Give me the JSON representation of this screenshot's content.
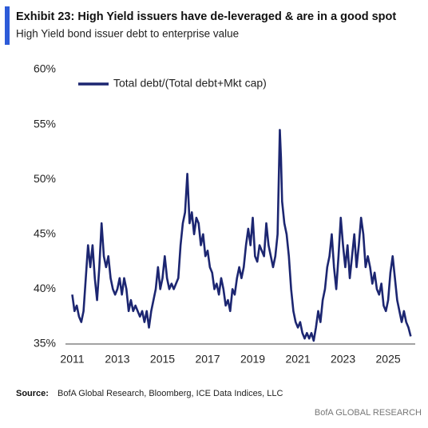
{
  "chart_data": {
    "type": "line",
    "title": "Exhibit 23: High Yield issuers have de-leveraged & are in a good spot",
    "subtitle": "High Yield bond issuer debt to enterprise value",
    "source_label": "Source:",
    "source": "BofA Global Research, Bloomberg, ICE Data Indices, LLC",
    "footer": "BofA GLOBAL RESEARCH",
    "legend": "top-left",
    "grid": false,
    "xlim": [
      2010.7,
      2026.2
    ],
    "xticks": [
      2011,
      2013,
      2015,
      2017,
      2019,
      2021,
      2023,
      2025
    ],
    "ylim": [
      35,
      60
    ],
    "yticks": [
      {
        "value": 35,
        "label": "35%"
      },
      {
        "value": 40,
        "label": "40%"
      },
      {
        "value": 45,
        "label": "45%"
      },
      {
        "value": 50,
        "label": "50%"
      },
      {
        "value": 55,
        "label": "55%"
      },
      {
        "value": 60,
        "label": "60%"
      }
    ],
    "x": [
      2011.0,
      2011.1,
      2011.2,
      2011.3,
      2011.4,
      2011.5,
      2011.6,
      2011.7,
      2011.8,
      2011.9,
      2012.0,
      2012.1,
      2012.2,
      2012.3,
      2012.4,
      2012.5,
      2012.6,
      2012.7,
      2012.8,
      2012.9,
      2013.0,
      2013.1,
      2013.2,
      2013.3,
      2013.4,
      2013.5,
      2013.6,
      2013.7,
      2013.8,
      2013.9,
      2014.0,
      2014.1,
      2014.2,
      2014.3,
      2014.4,
      2014.5,
      2014.6,
      2014.7,
      2014.8,
      2014.9,
      2015.0,
      2015.1,
      2015.2,
      2015.3,
      2015.4,
      2015.5,
      2015.6,
      2015.7,
      2015.8,
      2015.9,
      2016.0,
      2016.1,
      2016.2,
      2016.3,
      2016.4,
      2016.5,
      2016.6,
      2016.7,
      2016.8,
      2016.9,
      2017.0,
      2017.1,
      2017.2,
      2017.3,
      2017.4,
      2017.5,
      2017.6,
      2017.7,
      2017.8,
      2017.9,
      2018.0,
      2018.1,
      2018.2,
      2018.3,
      2018.4,
      2018.5,
      2018.6,
      2018.7,
      2018.8,
      2018.9,
      2019.0,
      2019.1,
      2019.2,
      2019.3,
      2019.4,
      2019.5,
      2019.6,
      2019.7,
      2019.8,
      2019.9,
      2020.0,
      2020.1,
      2020.2,
      2020.25,
      2020.3,
      2020.4,
      2020.5,
      2020.6,
      2020.7,
      2020.8,
      2020.9,
      2021.0,
      2021.1,
      2021.2,
      2021.3,
      2021.4,
      2021.5,
      2021.6,
      2021.7,
      2021.8,
      2021.9,
      2022.0,
      2022.1,
      2022.2,
      2022.3,
      2022.4,
      2022.5,
      2022.6,
      2022.7,
      2022.8,
      2022.9,
      2023.0,
      2023.1,
      2023.2,
      2023.3,
      2023.4,
      2023.5,
      2023.6,
      2023.7,
      2023.8,
      2023.9,
      2024.0,
      2024.1,
      2024.2,
      2024.3,
      2024.4,
      2024.5,
      2024.6,
      2024.7,
      2024.8,
      2024.9,
      2025.0,
      2025.1,
      2025.2,
      2025.3,
      2025.4,
      2025.5,
      2025.6,
      2025.7,
      2025.8,
      2025.9,
      2026.0
    ],
    "series": [
      {
        "name": "Total debt/(Total debt+Mkt cap)",
        "color": "#1c2671",
        "values": [
          39.5,
          38,
          38.5,
          37.5,
          37,
          38,
          41,
          44,
          42,
          44,
          41,
          39,
          42,
          46,
          43,
          42,
          43,
          41,
          40,
          39.5,
          40,
          41,
          39.5,
          41,
          40,
          38,
          39,
          38,
          38.5,
          38,
          37.5,
          38,
          37,
          38,
          36.5,
          38,
          39,
          40,
          42,
          40,
          41,
          43,
          41,
          40,
          40.5,
          40,
          40.5,
          41,
          44,
          46,
          47,
          50.5,
          46,
          47,
          45,
          46.5,
          46,
          44,
          45,
          43,
          43.5,
          42,
          41.5,
          40,
          40.5,
          39.5,
          41,
          40,
          38.5,
          39,
          38,
          40,
          39.5,
          41,
          42,
          41,
          42,
          44,
          45.5,
          44,
          46.5,
          43,
          42.5,
          44,
          43.5,
          43,
          46,
          44,
          43,
          42,
          43,
          45,
          54.5,
          52,
          48,
          46,
          45,
          43,
          40,
          38,
          37,
          36.5,
          37,
          36,
          35.5,
          36,
          35.5,
          36,
          35.3,
          36.5,
          38,
          37,
          39,
          40,
          42,
          43,
          45,
          42,
          40,
          43,
          46.5,
          44,
          42,
          44,
          41,
          43,
          45,
          42,
          44,
          46.5,
          45,
          42,
          43,
          42,
          40.5,
          41.5,
          40,
          39.5,
          40.5,
          38.5,
          38,
          39,
          41.5,
          43,
          41,
          39,
          38,
          37,
          38,
          37,
          36.5,
          35.7
        ]
      }
    ]
  }
}
